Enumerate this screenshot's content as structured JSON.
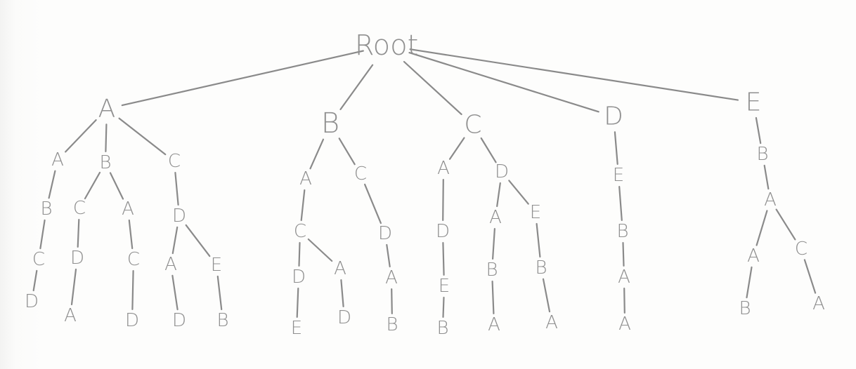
{
  "tree": {
    "id": "root",
    "label": "Root",
    "children": [
      {
        "id": "a",
        "label": "A",
        "children": [
          {
            "id": "a_a",
            "label": "A",
            "children": [
              {
                "id": "a_a_b",
                "label": "B",
                "children": [
                  {
                    "id": "a_a_b_c",
                    "label": "C",
                    "children": [
                      {
                        "id": "a_a_b_c_d",
                        "label": "D",
                        "children": []
                      }
                    ]
                  }
                ]
              }
            ]
          },
          {
            "id": "a_b",
            "label": "B",
            "children": [
              {
                "id": "a_b_c",
                "label": "C",
                "children": [
                  {
                    "id": "a_b_c_d",
                    "label": "D",
                    "children": [
                      {
                        "id": "a_b_c_d_a",
                        "label": "A",
                        "children": []
                      }
                    ]
                  }
                ]
              },
              {
                "id": "a_b_a",
                "label": "A",
                "children": [
                  {
                    "id": "a_b_a_c",
                    "label": "C",
                    "children": [
                      {
                        "id": "a_b_a_c_d",
                        "label": "D",
                        "children": []
                      }
                    ]
                  }
                ]
              }
            ]
          },
          {
            "id": "a_c",
            "label": "C",
            "children": [
              {
                "id": "a_c_d",
                "label": "D",
                "children": [
                  {
                    "id": "a_c_d_a",
                    "label": "A",
                    "children": [
                      {
                        "id": "a_c_d_a_d",
                        "label": "D",
                        "children": []
                      }
                    ]
                  },
                  {
                    "id": "a_c_d_e",
                    "label": "E",
                    "children": [
                      {
                        "id": "a_c_d_e_b",
                        "label": "B",
                        "children": []
                      }
                    ]
                  }
                ]
              }
            ]
          }
        ]
      },
      {
        "id": "b",
        "label": "B",
        "children": [
          {
            "id": "b_a",
            "label": "A",
            "children": [
              {
                "id": "b_a_c",
                "label": "C",
                "children": [
                  {
                    "id": "b_a_c_d",
                    "label": "D",
                    "children": [
                      {
                        "id": "b_a_c_d_e",
                        "label": "E",
                        "children": []
                      }
                    ]
                  },
                  {
                    "id": "b_a_c_a",
                    "label": "A",
                    "children": [
                      {
                        "id": "b_a_c_a_d",
                        "label": "D",
                        "children": []
                      }
                    ]
                  }
                ]
              }
            ]
          },
          {
            "id": "b_c",
            "label": "C",
            "children": [
              {
                "id": "b_c_d",
                "label": "D",
                "children": [
                  {
                    "id": "b_c_d_a",
                    "label": "A",
                    "children": [
                      {
                        "id": "b_c_d_a_b",
                        "label": "B",
                        "children": []
                      }
                    ]
                  }
                ]
              }
            ]
          }
        ]
      },
      {
        "id": "c",
        "label": "C",
        "children": [
          {
            "id": "c_a",
            "label": "A",
            "children": [
              {
                "id": "c_a_d",
                "label": "D",
                "children": [
                  {
                    "id": "c_a_d_e",
                    "label": "E",
                    "children": [
                      {
                        "id": "c_a_d_e_b",
                        "label": "B",
                        "children": []
                      }
                    ]
                  }
                ]
              }
            ]
          },
          {
            "id": "c_d",
            "label": "D",
            "children": [
              {
                "id": "c_d_a",
                "label": "A",
                "children": [
                  {
                    "id": "c_d_a_b",
                    "label": "B",
                    "children": [
                      {
                        "id": "c_d_a_b_a",
                        "label": "A",
                        "children": []
                      }
                    ]
                  }
                ]
              },
              {
                "id": "c_d_e",
                "label": "E",
                "children": [
                  {
                    "id": "c_d_e_b",
                    "label": "B",
                    "children": [
                      {
                        "id": "c_d_e_b_a",
                        "label": "A",
                        "children": []
                      }
                    ]
                  }
                ]
              }
            ]
          }
        ]
      },
      {
        "id": "d",
        "label": "D",
        "children": [
          {
            "id": "d_e",
            "label": "E",
            "children": [
              {
                "id": "d_e_b",
                "label": "B",
                "children": [
                  {
                    "id": "d_e_b_a",
                    "label": "A",
                    "children": [
                      {
                        "id": "d_e_b_a_a",
                        "label": "A",
                        "children": []
                      }
                    ]
                  }
                ]
              }
            ]
          }
        ]
      },
      {
        "id": "e",
        "label": "E",
        "children": [
          {
            "id": "e_b",
            "label": "B",
            "children": [
              {
                "id": "e_b_a",
                "label": "A",
                "children": [
                  {
                    "id": "e_b_a_a",
                    "label": "A",
                    "children": [
                      {
                        "id": "e_b_a_a_b",
                        "label": "B",
                        "children": []
                      }
                    ]
                  },
                  {
                    "id": "e_b_a_c",
                    "label": "C",
                    "children": [
                      {
                        "id": "e_b_a_c_a",
                        "label": "A",
                        "children": []
                      }
                    ]
                  }
                ]
              }
            ]
          }
        ]
      }
    ]
  }
}
